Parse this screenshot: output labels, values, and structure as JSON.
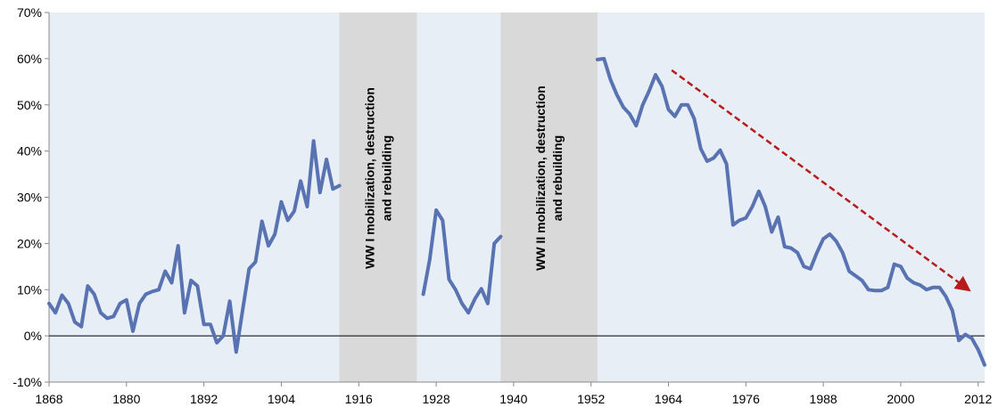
{
  "chart_data": {
    "type": "line",
    "title": "",
    "xlabel": "",
    "ylabel": "",
    "xlim": [
      1868,
      2013
    ],
    "ylim": [
      -10,
      70
    ],
    "x_ticks": [
      1868,
      1880,
      1892,
      1904,
      1916,
      1928,
      1940,
      1952,
      1964,
      1976,
      1988,
      2000,
      2012
    ],
    "x_tick_labels": [
      "1868",
      "1880",
      "1892",
      "1904",
      "1916",
      "1928",
      "1940",
      "1952",
      "1964",
      "1976",
      "1988",
      "2000",
      "2012"
    ],
    "y_ticks": [
      -10,
      0,
      10,
      20,
      30,
      40,
      50,
      60,
      70
    ],
    "y_tick_labels": [
      "-10%",
      "0%",
      "10%",
      "20%",
      "30%",
      "40%",
      "50%",
      "60%",
      "70%"
    ],
    "grid": false,
    "colors": {
      "plot_bg": "#e7eef5",
      "line": "#5872b2",
      "band": "#d9d9d9",
      "arrow": "#b71c1c"
    },
    "shaded_periods": [
      {
        "start": 1913,
        "end": 1925,
        "label_lines": [
          "WW I mobilization, destruction",
          "and rebuilding"
        ]
      },
      {
        "start": 1938,
        "end": 1953,
        "label_lines": [
          "WW II mobilization, destruction",
          "and rebuilding"
        ]
      }
    ],
    "trend_arrow": {
      "from": [
        1964.5,
        57.5
      ],
      "to": [
        2010.5,
        10
      ]
    },
    "series": [
      {
        "name": "",
        "segments": [
          {
            "x": [
              1868,
              1869,
              1870,
              1871,
              1872,
              1873,
              1874,
              1875,
              1876,
              1877,
              1878,
              1879,
              1880,
              1881,
              1882,
              1883,
              1884,
              1885,
              1886,
              1887,
              1888,
              1889,
              1890,
              1891,
              1892,
              1893,
              1894,
              1895,
              1896,
              1897,
              1898,
              1899,
              1900,
              1901,
              1902,
              1903,
              1904,
              1905,
              1906,
              1907,
              1908,
              1909,
              1910,
              1911,
              1912,
              1913
            ],
            "y": [
              7,
              5,
              8.8,
              7,
              3,
              2,
              10.8,
              9,
              5,
              3.8,
              4.2,
              7,
              7.8,
              1,
              7,
              9,
              9.6,
              10,
              14,
              11.5,
              19.5,
              5,
              12,
              10.8,
              2.5,
              2.5,
              -1.5,
              0,
              7.5,
              -3.5,
              5.5,
              14.5,
              16,
              24.8,
              19.5,
              22,
              29,
              25,
              27,
              33.5,
              28,
              42.2,
              31,
              38.2,
              31.8,
              32.5
            ]
          },
          {
            "x": [
              1926,
              1927,
              1928,
              1929,
              1930,
              1931,
              1932,
              1933,
              1934,
              1935,
              1936,
              1937,
              1938
            ],
            "y": [
              9,
              16.5,
              27.2,
              25,
              12.2,
              10,
              7,
              5,
              8,
              10.2,
              7,
              20,
              21.5
            ]
          },
          {
            "x": [
              1953,
              1954,
              1955,
              1956,
              1957,
              1958,
              1959,
              1960,
              1961,
              1962,
              1963,
              1964,
              1965,
              1966,
              1967,
              1968,
              1969,
              1970,
              1971,
              1972,
              1973,
              1974,
              1975,
              1976,
              1977,
              1978,
              1979,
              1980,
              1981,
              1982,
              1983,
              1984,
              1985,
              1986,
              1987,
              1988,
              1989,
              1990,
              1991,
              1992,
              1993,
              1994,
              1995,
              1996,
              1997,
              1998,
              1999,
              2000,
              2001,
              2002,
              2003,
              2004,
              2005,
              2006,
              2007,
              2008,
              2009,
              2010,
              2011,
              2012,
              2013
            ],
            "y": [
              59.8,
              60,
              55.5,
              52.2,
              49.5,
              48,
              45.5,
              50,
              53,
              56.5,
              54,
              49,
              47.5,
              50,
              50,
              47,
              40.5,
              37.8,
              38.5,
              40.2,
              37.2,
              24,
              25,
              25.5,
              28,
              31.3,
              28,
              22.5,
              25.7,
              19.3,
              19,
              18,
              15,
              14.5,
              18,
              21,
              22,
              20.5,
              18,
              14,
              13,
              12,
              10,
              9.8,
              9.8,
              10.5,
              15.5,
              15,
              12.5,
              11.5,
              11,
              10,
              10.5,
              10.5,
              8.5,
              5.5,
              -1,
              0.3,
              -0.5,
              -3,
              -6.3
            ]
          }
        ]
      }
    ]
  }
}
